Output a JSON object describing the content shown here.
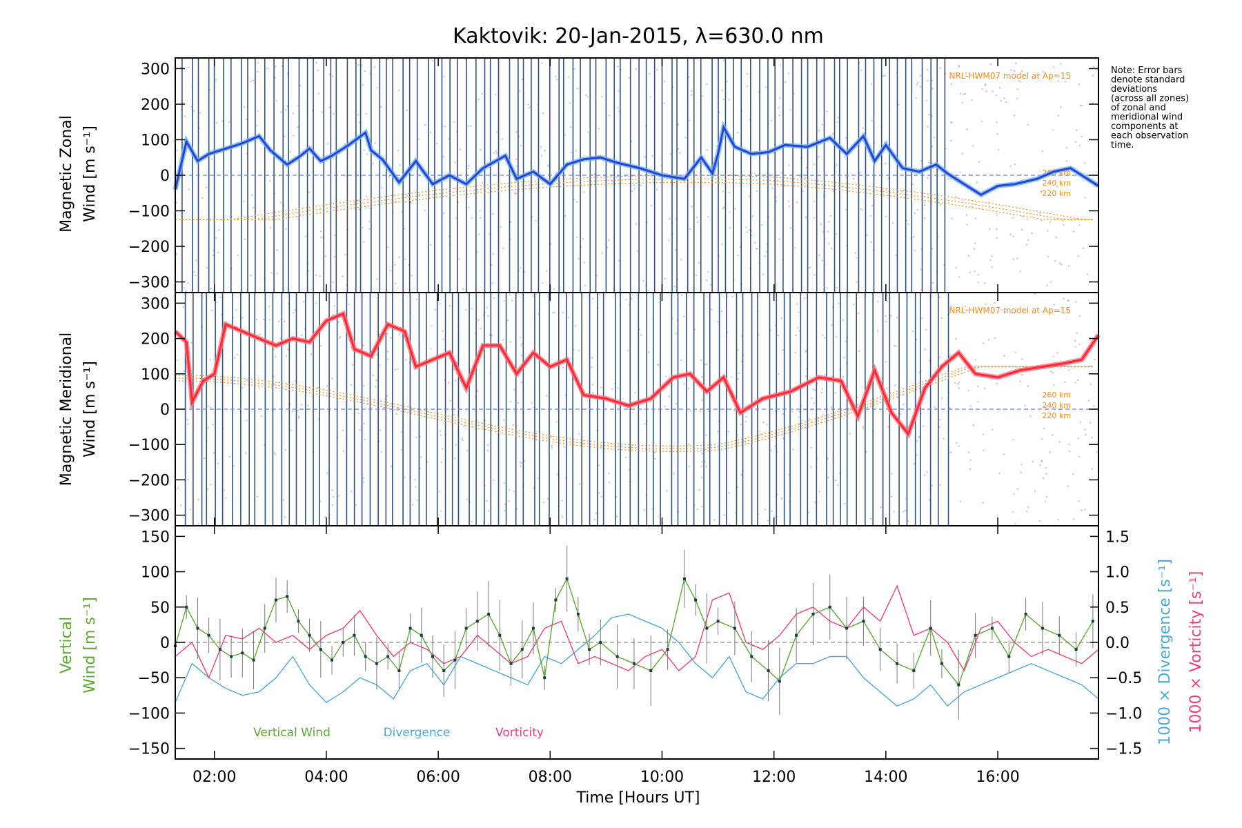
{
  "figure": {
    "title": "Kaktovik: 20-Jan-2015, λ=630.0 nm",
    "xlabel": "Time [Hours UT]",
    "note_lines": [
      "Note: Error bars",
      "denote standard",
      "deviations",
      "(across all zones)",
      "of zonal and",
      "meridional wind",
      "components at",
      "each observation",
      "time."
    ]
  },
  "colors": {
    "zonal": "#2c3fd8",
    "zonal_light": "#69b8e8",
    "meridional": "#ff2a2a",
    "meridional_light": "#ff6f8a",
    "vertical": "#5ca832",
    "divergence": "#4fa8d8",
    "vorticity": "#ec3f7c",
    "model": "#f28c1c",
    "obs_line": "#1a3f6e"
  },
  "chart_data": [
    {
      "type": "line",
      "ylabel_lines": [
        "Magnetic Zonal",
        "Wind [m s⁻¹]"
      ],
      "ylim": [
        -330,
        330
      ],
      "yticks": [
        "300",
        "200",
        "100",
        "0",
        "−100",
        "−200",
        "−300"
      ],
      "xticks": [
        "02:00",
        "04:00",
        "06:00",
        "08:00",
        "10:00",
        "12:00",
        "14:00",
        "16:00"
      ],
      "xlim": [
        1.3,
        17.8
      ],
      "model_label": "NRL-HWM07 model at Ap=15",
      "model_altitudes": [
        "260 km",
        "240 km",
        "220 km"
      ],
      "series": [
        {
          "x": [
            1.3,
            1.5,
            1.7,
            1.9,
            2.2,
            2.5,
            2.8,
            3.0,
            3.3,
            3.5,
            3.7,
            3.9,
            4.1,
            4.4,
            4.7,
            4.8,
            5.0,
            5.3,
            5.6,
            5.9,
            6.2,
            6.5,
            6.8,
            7.2,
            7.4,
            7.7,
            8.0,
            8.3,
            8.6,
            8.9,
            9.2,
            9.6,
            10.0,
            10.4,
            10.7,
            10.9,
            11.0,
            11.1,
            11.3,
            11.6,
            11.9,
            12.2,
            12.6,
            13.0,
            13.3,
            13.6,
            13.8,
            14.0,
            14.3,
            14.6,
            14.9,
            15.1,
            15.4,
            15.7,
            16.0,
            16.3,
            16.7,
            17.0,
            17.3,
            17.6,
            17.8
          ],
          "y": [
            -40,
            95,
            40,
            60,
            75,
            90,
            110,
            70,
            30,
            50,
            75,
            40,
            55,
            85,
            120,
            70,
            45,
            -20,
            40,
            -25,
            0,
            -25,
            20,
            55,
            -10,
            10,
            -25,
            30,
            45,
            50,
            35,
            20,
            0,
            -10,
            50,
            5,
            60,
            135,
            80,
            60,
            65,
            85,
            80,
            105,
            60,
            110,
            40,
            85,
            20,
            10,
            30,
            5,
            -25,
            -55,
            -30,
            -25,
            -10,
            10,
            20,
            -10,
            -30
          ]
        }
      ]
    },
    {
      "type": "line",
      "ylabel_lines": [
        "Magnetic Meridional",
        "Wind [m s⁻¹]"
      ],
      "ylim": [
        -330,
        330
      ],
      "yticks": [
        "300",
        "200",
        "100",
        "0",
        "−100",
        "−200",
        "−300"
      ],
      "xticks": [
        "02:00",
        "04:00",
        "06:00",
        "08:00",
        "10:00",
        "12:00",
        "14:00",
        "16:00"
      ],
      "xlim": [
        1.3,
        17.8
      ],
      "model_label": "NRL-HWM07 model at Ap=15",
      "model_altitudes": [
        "260 km",
        "240 km",
        "220 km"
      ],
      "series": [
        {
          "x": [
            1.3,
            1.5,
            1.6,
            1.8,
            2.0,
            2.2,
            2.5,
            2.8,
            3.1,
            3.4,
            3.7,
            4.0,
            4.3,
            4.5,
            4.8,
            5.1,
            5.4,
            5.6,
            5.9,
            6.2,
            6.5,
            6.8,
            7.1,
            7.4,
            7.7,
            8.0,
            8.3,
            8.6,
            9.0,
            9.4,
            9.8,
            10.2,
            10.5,
            10.8,
            11.1,
            11.4,
            11.8,
            12.3,
            12.8,
            13.2,
            13.5,
            13.8,
            14.1,
            14.4,
            14.7,
            15.0,
            15.3,
            15.6,
            16.0,
            16.4,
            16.8,
            17.2,
            17.5,
            17.8
          ],
          "y": [
            220,
            190,
            20,
            80,
            100,
            240,
            220,
            200,
            180,
            200,
            190,
            250,
            270,
            170,
            150,
            240,
            220,
            120,
            140,
            160,
            60,
            180,
            180,
            100,
            160,
            120,
            140,
            40,
            30,
            10,
            30,
            90,
            100,
            50,
            90,
            -10,
            30,
            50,
            90,
            80,
            -20,
            110,
            -10,
            -70,
            60,
            120,
            160,
            100,
            90,
            110,
            120,
            130,
            140,
            210
          ]
        }
      ]
    },
    {
      "type": "line",
      "ylabel_lines": [
        "Vertical",
        "Wind [m s⁻¹]"
      ],
      "ylim": [
        -165,
        165
      ],
      "yticks": [
        "150",
        "100",
        "50",
        "0",
        "−50",
        "−100",
        "−150"
      ],
      "y2label_div": "1000 × Divergence [s⁻¹]",
      "y2label_vort": "1000 × Vorticity [s⁻¹]",
      "y2ticks": [
        "1.5",
        "1.0",
        "0.5",
        "0.0",
        "−0.5",
        "−1.0",
        "−1.5"
      ],
      "xticks": [
        "02:00",
        "04:00",
        "06:00",
        "08:00",
        "10:00",
        "12:00",
        "14:00",
        "16:00"
      ],
      "xlim": [
        1.3,
        17.8
      ],
      "legend": [
        "Vertical Wind",
        "Divergence",
        "Vorticity"
      ],
      "series": [
        {
          "name": "Vertical Wind",
          "x": [
            1.3,
            1.5,
            1.7,
            1.9,
            2.1,
            2.3,
            2.5,
            2.7,
            2.9,
            3.1,
            3.3,
            3.5,
            3.7,
            3.9,
            4.1,
            4.3,
            4.5,
            4.7,
            4.9,
            5.1,
            5.3,
            5.5,
            5.7,
            5.9,
            6.1,
            6.3,
            6.5,
            6.7,
            6.9,
            7.1,
            7.3,
            7.5,
            7.7,
            7.9,
            8.1,
            8.3,
            8.5,
            8.7,
            8.9,
            9.2,
            9.5,
            9.8,
            10.1,
            10.4,
            10.6,
            10.8,
            11.0,
            11.3,
            11.6,
            11.9,
            12.1,
            12.4,
            12.7,
            13.0,
            13.3,
            13.6,
            13.9,
            14.2,
            14.5,
            14.8,
            15.0,
            15.3,
            15.6,
            15.9,
            16.2,
            16.5,
            16.8,
            17.1,
            17.4,
            17.7
          ],
          "y": [
            -5,
            50,
            20,
            10,
            -10,
            -20,
            -15,
            -25,
            20,
            60,
            65,
            30,
            10,
            -10,
            -25,
            0,
            10,
            -20,
            -30,
            -20,
            -40,
            20,
            10,
            -20,
            -40,
            -25,
            20,
            30,
            40,
            10,
            -30,
            -10,
            20,
            -50,
            60,
            90,
            40,
            -10,
            0,
            -20,
            -30,
            -40,
            -10,
            90,
            60,
            20,
            30,
            20,
            -20,
            -40,
            -55,
            10,
            40,
            50,
            20,
            30,
            -10,
            -30,
            -40,
            20,
            -30,
            -60,
            10,
            20,
            -20,
            40,
            20,
            10,
            -10,
            30
          ]
        },
        {
          "name": "Divergence",
          "x": [
            1.3,
            1.6,
            1.9,
            2.2,
            2.5,
            2.8,
            3.1,
            3.4,
            3.7,
            4.0,
            4.3,
            4.6,
            4.9,
            5.2,
            5.5,
            5.8,
            6.1,
            6.4,
            6.7,
            7.0,
            7.3,
            7.6,
            7.9,
            8.2,
            8.5,
            8.8,
            9.1,
            9.4,
            9.7,
            10.0,
            10.3,
            10.6,
            10.9,
            11.2,
            11.5,
            11.8,
            12.1,
            12.4,
            12.7,
            13.0,
            13.3,
            13.6,
            13.9,
            14.2,
            14.5,
            14.8,
            15.1,
            15.4,
            15.7,
            16.0,
            16.3,
            16.6,
            16.9,
            17.2,
            17.5,
            17.8
          ],
          "y": [
            -0.85,
            -0.3,
            -0.5,
            -0.65,
            -0.75,
            -0.7,
            -0.5,
            -0.2,
            -0.6,
            -0.85,
            -0.7,
            -0.5,
            -0.6,
            -0.8,
            -0.4,
            -0.3,
            -0.6,
            -0.2,
            -0.3,
            -0.4,
            -0.5,
            -0.6,
            -0.2,
            -0.3,
            -0.1,
            0.1,
            0.35,
            0.4,
            0.3,
            0.2,
            0.0,
            -0.3,
            -0.5,
            -0.2,
            -0.7,
            -0.8,
            -0.5,
            -0.3,
            -0.3,
            -0.2,
            -0.2,
            -0.5,
            -0.7,
            -0.9,
            -0.8,
            -0.6,
            -0.9,
            -0.7,
            -0.6,
            -0.5,
            -0.4,
            -0.3,
            -0.4,
            -0.5,
            -0.6,
            -0.8
          ]
        },
        {
          "name": "Vorticity",
          "x": [
            1.3,
            1.6,
            1.9,
            2.2,
            2.5,
            2.8,
            3.1,
            3.4,
            3.7,
            4.0,
            4.3,
            4.6,
            4.9,
            5.2,
            5.5,
            5.8,
            6.1,
            6.4,
            6.7,
            7.0,
            7.3,
            7.6,
            7.9,
            8.2,
            8.5,
            8.8,
            9.1,
            9.4,
            9.7,
            10.0,
            10.3,
            10.6,
            10.9,
            11.2,
            11.5,
            11.8,
            12.1,
            12.4,
            12.7,
            13.0,
            13.3,
            13.6,
            13.9,
            14.2,
            14.5,
            14.8,
            15.1,
            15.4,
            15.7,
            16.0,
            16.3,
            16.6,
            16.9,
            17.2,
            17.5,
            17.8
          ],
          "y": [
            -0.2,
            0.0,
            -0.5,
            0.1,
            0.05,
            0.2,
            0.0,
            0.1,
            -0.1,
            0.1,
            0.2,
            0.45,
            0.1,
            -0.2,
            0.0,
            -0.1,
            -0.3,
            -0.2,
            0.1,
            -0.1,
            -0.3,
            -0.2,
            0.2,
            0.3,
            -0.3,
            -0.2,
            -0.3,
            -0.4,
            -0.2,
            -0.1,
            -0.4,
            -0.2,
            0.6,
            0.7,
            0.0,
            -0.1,
            0.1,
            0.4,
            0.5,
            0.3,
            0.2,
            0.5,
            0.3,
            0.8,
            0.1,
            0.2,
            0.0,
            -0.4,
            0.2,
            0.3,
            0.0,
            -0.2,
            -0.1,
            -0.2,
            -0.3,
            -0.1
          ]
        }
      ]
    }
  ]
}
